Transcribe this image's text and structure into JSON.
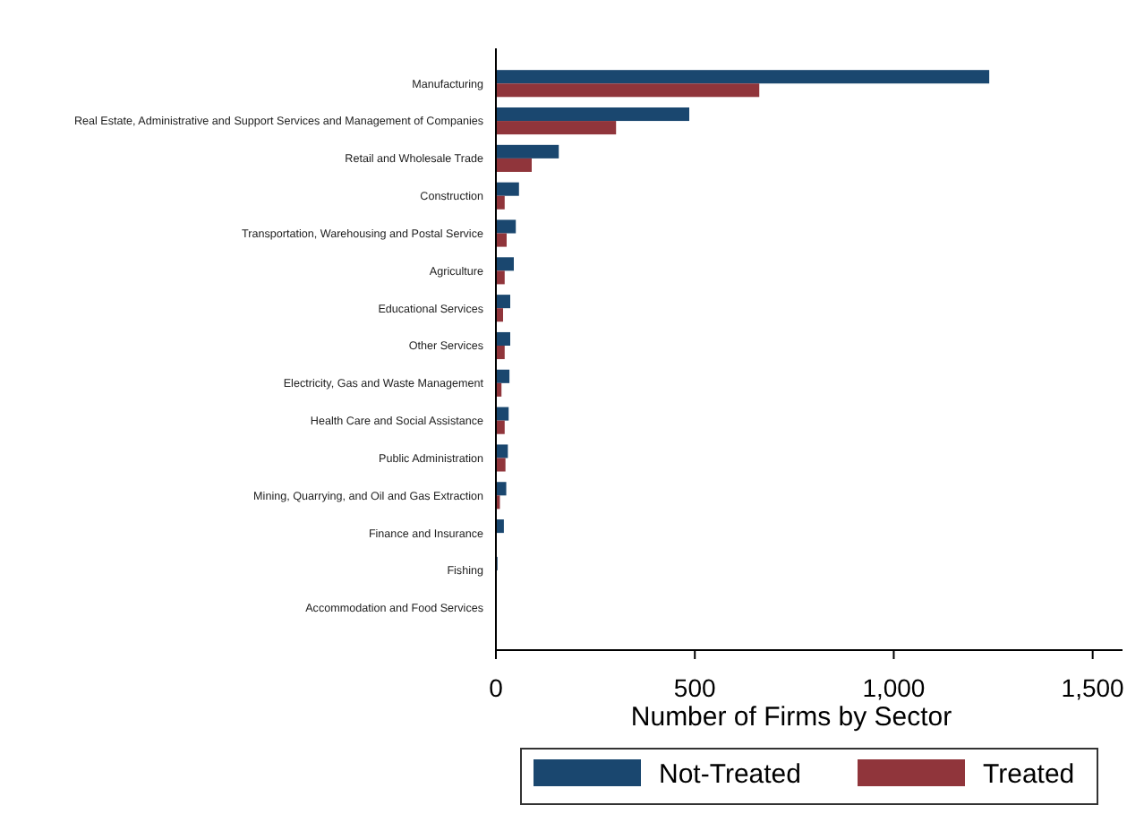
{
  "chart_data": {
    "type": "bar",
    "orientation": "horizontal",
    "xlabel": "Number of Firms by Sector",
    "categories": [
      "Manufacturing",
      "Real Estate, Administrative and Support Services and Management of Companies",
      "Retail and Wholesale Trade",
      "Construction",
      "Transportation, Warehousing and Postal Service",
      "Agriculture",
      "Educational Services",
      "Other Services",
      "Electricity, Gas and Waste Management",
      "Health Care and Social Assistance",
      "Public Administration",
      "Mining, Quarrying, and Oil and Gas Extraction",
      "Finance and Insurance",
      "Fishing",
      "Accommodation and Food Services"
    ],
    "series": [
      {
        "name": "Not-Treated",
        "color": "#1a476f",
        "values": [
          1240,
          486,
          158,
          58,
          50,
          45,
          36,
          36,
          34,
          32,
          30,
          26,
          20,
          4,
          null
        ]
      },
      {
        "name": "Treated",
        "color": "#90353b",
        "values": [
          662,
          302,
          90,
          22,
          27,
          22,
          18,
          22,
          14,
          22,
          24,
          10,
          null,
          null,
          0
        ]
      }
    ],
    "xlim": [
      0,
      1575
    ],
    "xticks": [
      0,
      500,
      {
        "value": 1000,
        "label": "1,000"
      },
      {
        "value": 1500,
        "label": "1,500"
      }
    ],
    "grid": false,
    "legend": "bottom"
  }
}
